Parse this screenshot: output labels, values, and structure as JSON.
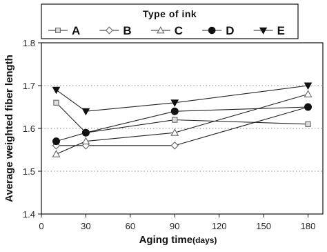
{
  "chart_data": {
    "type": "line",
    "title": "",
    "xlabel": "Aging time",
    "xlabel_unit": "(days)",
    "ylabel": "Average weighted fiber length",
    "xlim": [
      0,
      190
    ],
    "ylim": [
      1.4,
      1.8
    ],
    "x_ticks": [
      0,
      30,
      60,
      90,
      120,
      150,
      180
    ],
    "y_ticks": [
      1.4,
      1.5,
      1.6,
      1.7,
      1.8
    ],
    "grid": "horizontal dotted",
    "legend": {
      "title": "Type of ink",
      "placement": "top-center"
    },
    "series": [
      {
        "name": "A",
        "marker": "square",
        "color": "#666666",
        "points": [
          [
            10,
            1.66
          ],
          [
            30,
            1.59
          ],
          [
            90,
            1.62
          ],
          [
            180,
            1.61
          ]
        ]
      },
      {
        "name": "B",
        "marker": "diamond-open",
        "color": "#666666",
        "points": [
          [
            10,
            1.56
          ],
          [
            30,
            1.56
          ],
          [
            90,
            1.56
          ],
          [
            180,
            1.65
          ]
        ]
      },
      {
        "name": "C",
        "marker": "triangle-open",
        "color": "#666666",
        "points": [
          [
            10,
            1.54
          ],
          [
            30,
            1.57
          ],
          [
            90,
            1.59
          ],
          [
            180,
            1.68
          ]
        ]
      },
      {
        "name": "D",
        "marker": "circle-filled",
        "color": "#111111",
        "points": [
          [
            10,
            1.57
          ],
          [
            30,
            1.59
          ],
          [
            90,
            1.64
          ],
          [
            180,
            1.65
          ]
        ]
      },
      {
        "name": "E",
        "marker": "triangle-down-filled",
        "color": "#111111",
        "points": [
          [
            10,
            1.69
          ],
          [
            30,
            1.64
          ],
          [
            90,
            1.66
          ],
          [
            180,
            1.7
          ]
        ]
      }
    ]
  }
}
